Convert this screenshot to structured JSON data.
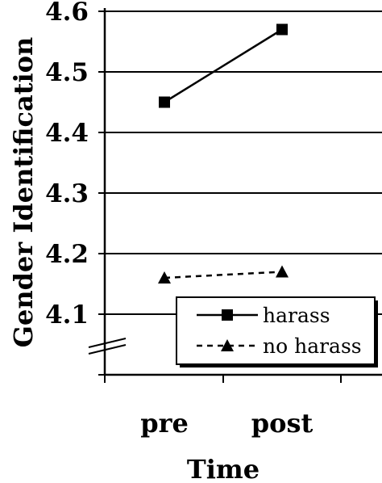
{
  "chart_data": {
    "type": "line",
    "categories": [
      "pre",
      "post"
    ],
    "series": [
      {
        "name": "harass",
        "values": [
          4.45,
          4.57
        ],
        "line_style": "solid",
        "marker": "square",
        "color": "#000000"
      },
      {
        "name": "no harass",
        "values": [
          4.16,
          4.17
        ],
        "line_style": "dashed",
        "marker": "triangle",
        "color": "#000000"
      }
    ],
    "xlabel": "Time",
    "ylabel": "Gender Identification",
    "ylim": [
      4.0,
      4.6
    ],
    "yticks": [
      4.1,
      4.2,
      4.3,
      4.4,
      4.5,
      4.6
    ],
    "ytick_labels": [
      "4.1",
      "4.2",
      "4.3",
      "4.4",
      "4.5",
      "4.6"
    ],
    "grid": true,
    "axis_break": true,
    "legend_position": "bottom-right"
  }
}
